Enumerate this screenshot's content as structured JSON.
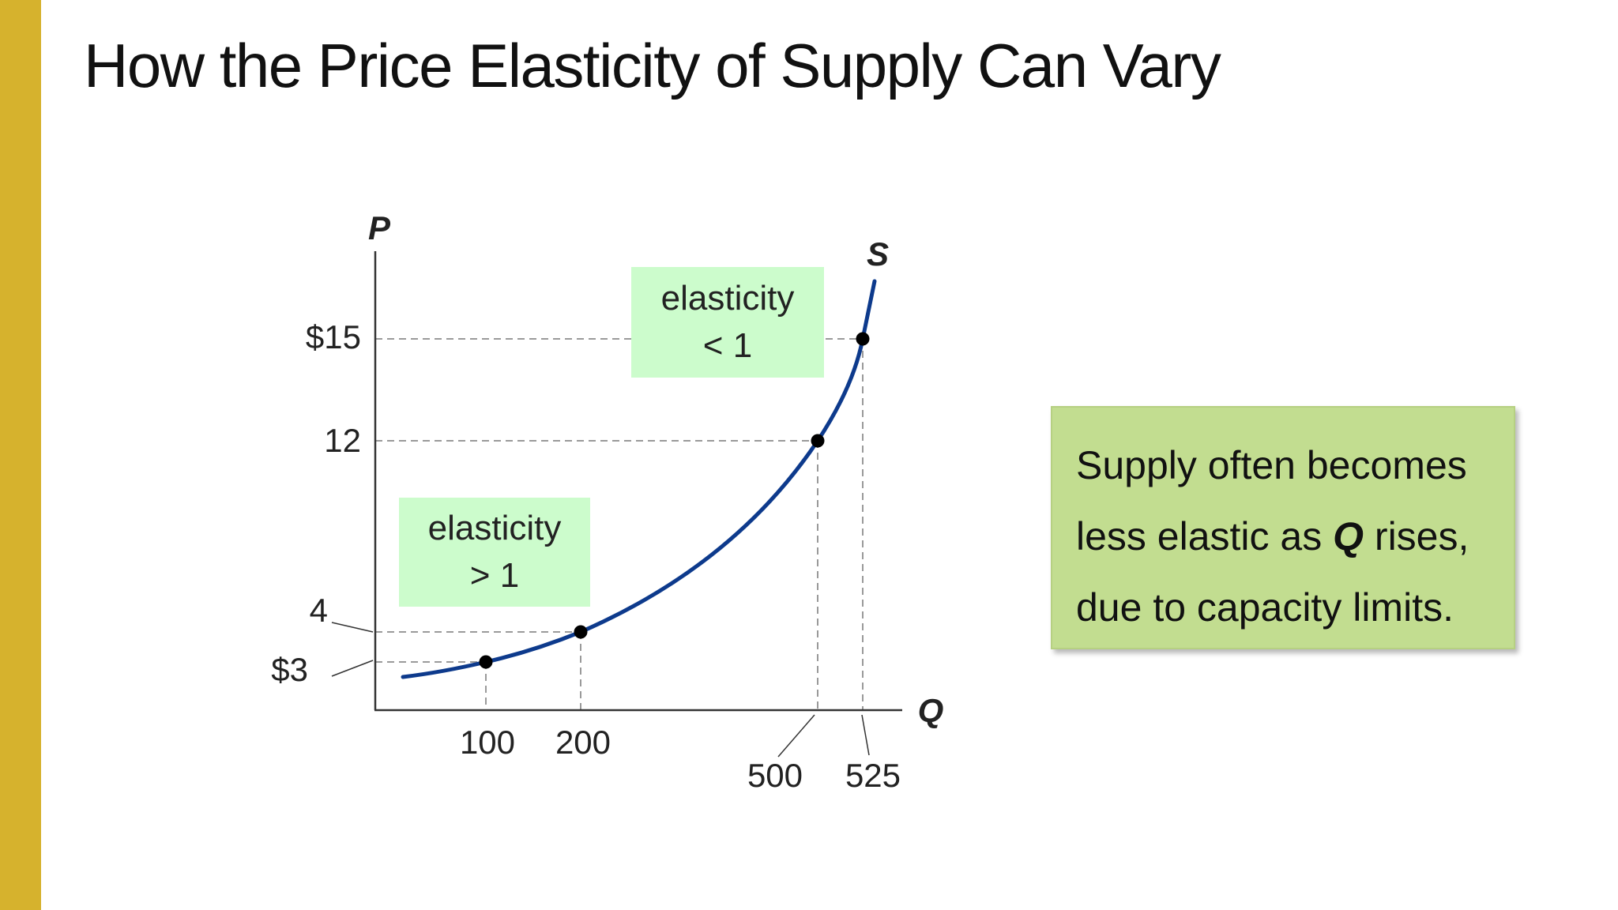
{
  "slide": {
    "title": "How the Price Elasticity of Supply Can Vary",
    "accent_color": "#d6b22d"
  },
  "note": {
    "line1": "Supply often becomes",
    "line2_before": "less elastic as ",
    "line2_bold": "Q",
    "line2_after": " rises,",
    "line3": "due to capacity limits.",
    "background": "#c2dd90"
  },
  "chart_data": {
    "type": "line",
    "xlabel": "Q",
    "ylabel": "P",
    "series": [
      {
        "name": "S",
        "color": "#0d3a8c",
        "points": [
          {
            "q": 100,
            "p": 3
          },
          {
            "q": 200,
            "p": 4
          },
          {
            "q": 500,
            "p": 12
          },
          {
            "q": 525,
            "p": 15
          }
        ]
      }
    ],
    "x_ticks": [
      "100",
      "200",
      "500",
      "525"
    ],
    "y_ticks": [
      "$3",
      "4",
      "12",
      "$15"
    ],
    "annotations": [
      {
        "line1": "elasticity",
        "line2": "> 1",
        "color": "#ccfccc"
      },
      {
        "line1": "elasticity",
        "line2": "< 1",
        "color": "#ccfccc"
      }
    ],
    "grid": false,
    "reference_lines": "dashed lines from each marked point to both axes"
  }
}
